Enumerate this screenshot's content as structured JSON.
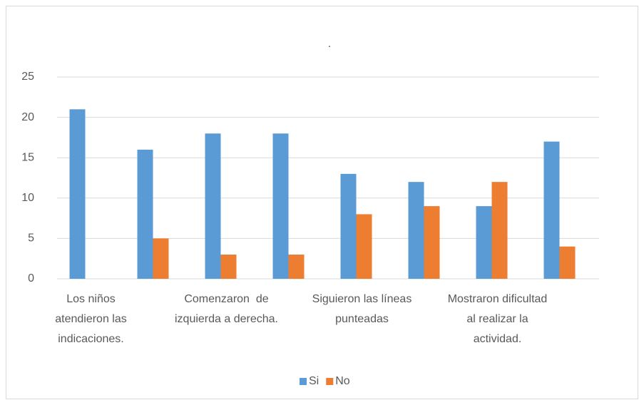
{
  "chart_data": {
    "type": "bar",
    "title": ".",
    "categories": [
      "Los niños\natendieron las\nindicaciones.",
      null,
      "Comenzaron  de\nizquierda a derecha.",
      null,
      "Siguieron las líneas\npunteadas",
      null,
      "Mostraron dificultad\nal realizar la\nactividad.",
      null
    ],
    "series": [
      {
        "name": "Si",
        "color": "#5b9bd5",
        "values": [
          21,
          16,
          18,
          18,
          13,
          12,
          9,
          17
        ]
      },
      {
        "name": "No",
        "color": "#ed7d31",
        "values": [
          0,
          5,
          3,
          3,
          8,
          9,
          12,
          4
        ]
      }
    ],
    "ylim": [
      0,
      25
    ],
    "yticks": [
      0,
      5,
      10,
      15,
      20,
      25
    ],
    "grid": true,
    "legend": "bottom"
  }
}
